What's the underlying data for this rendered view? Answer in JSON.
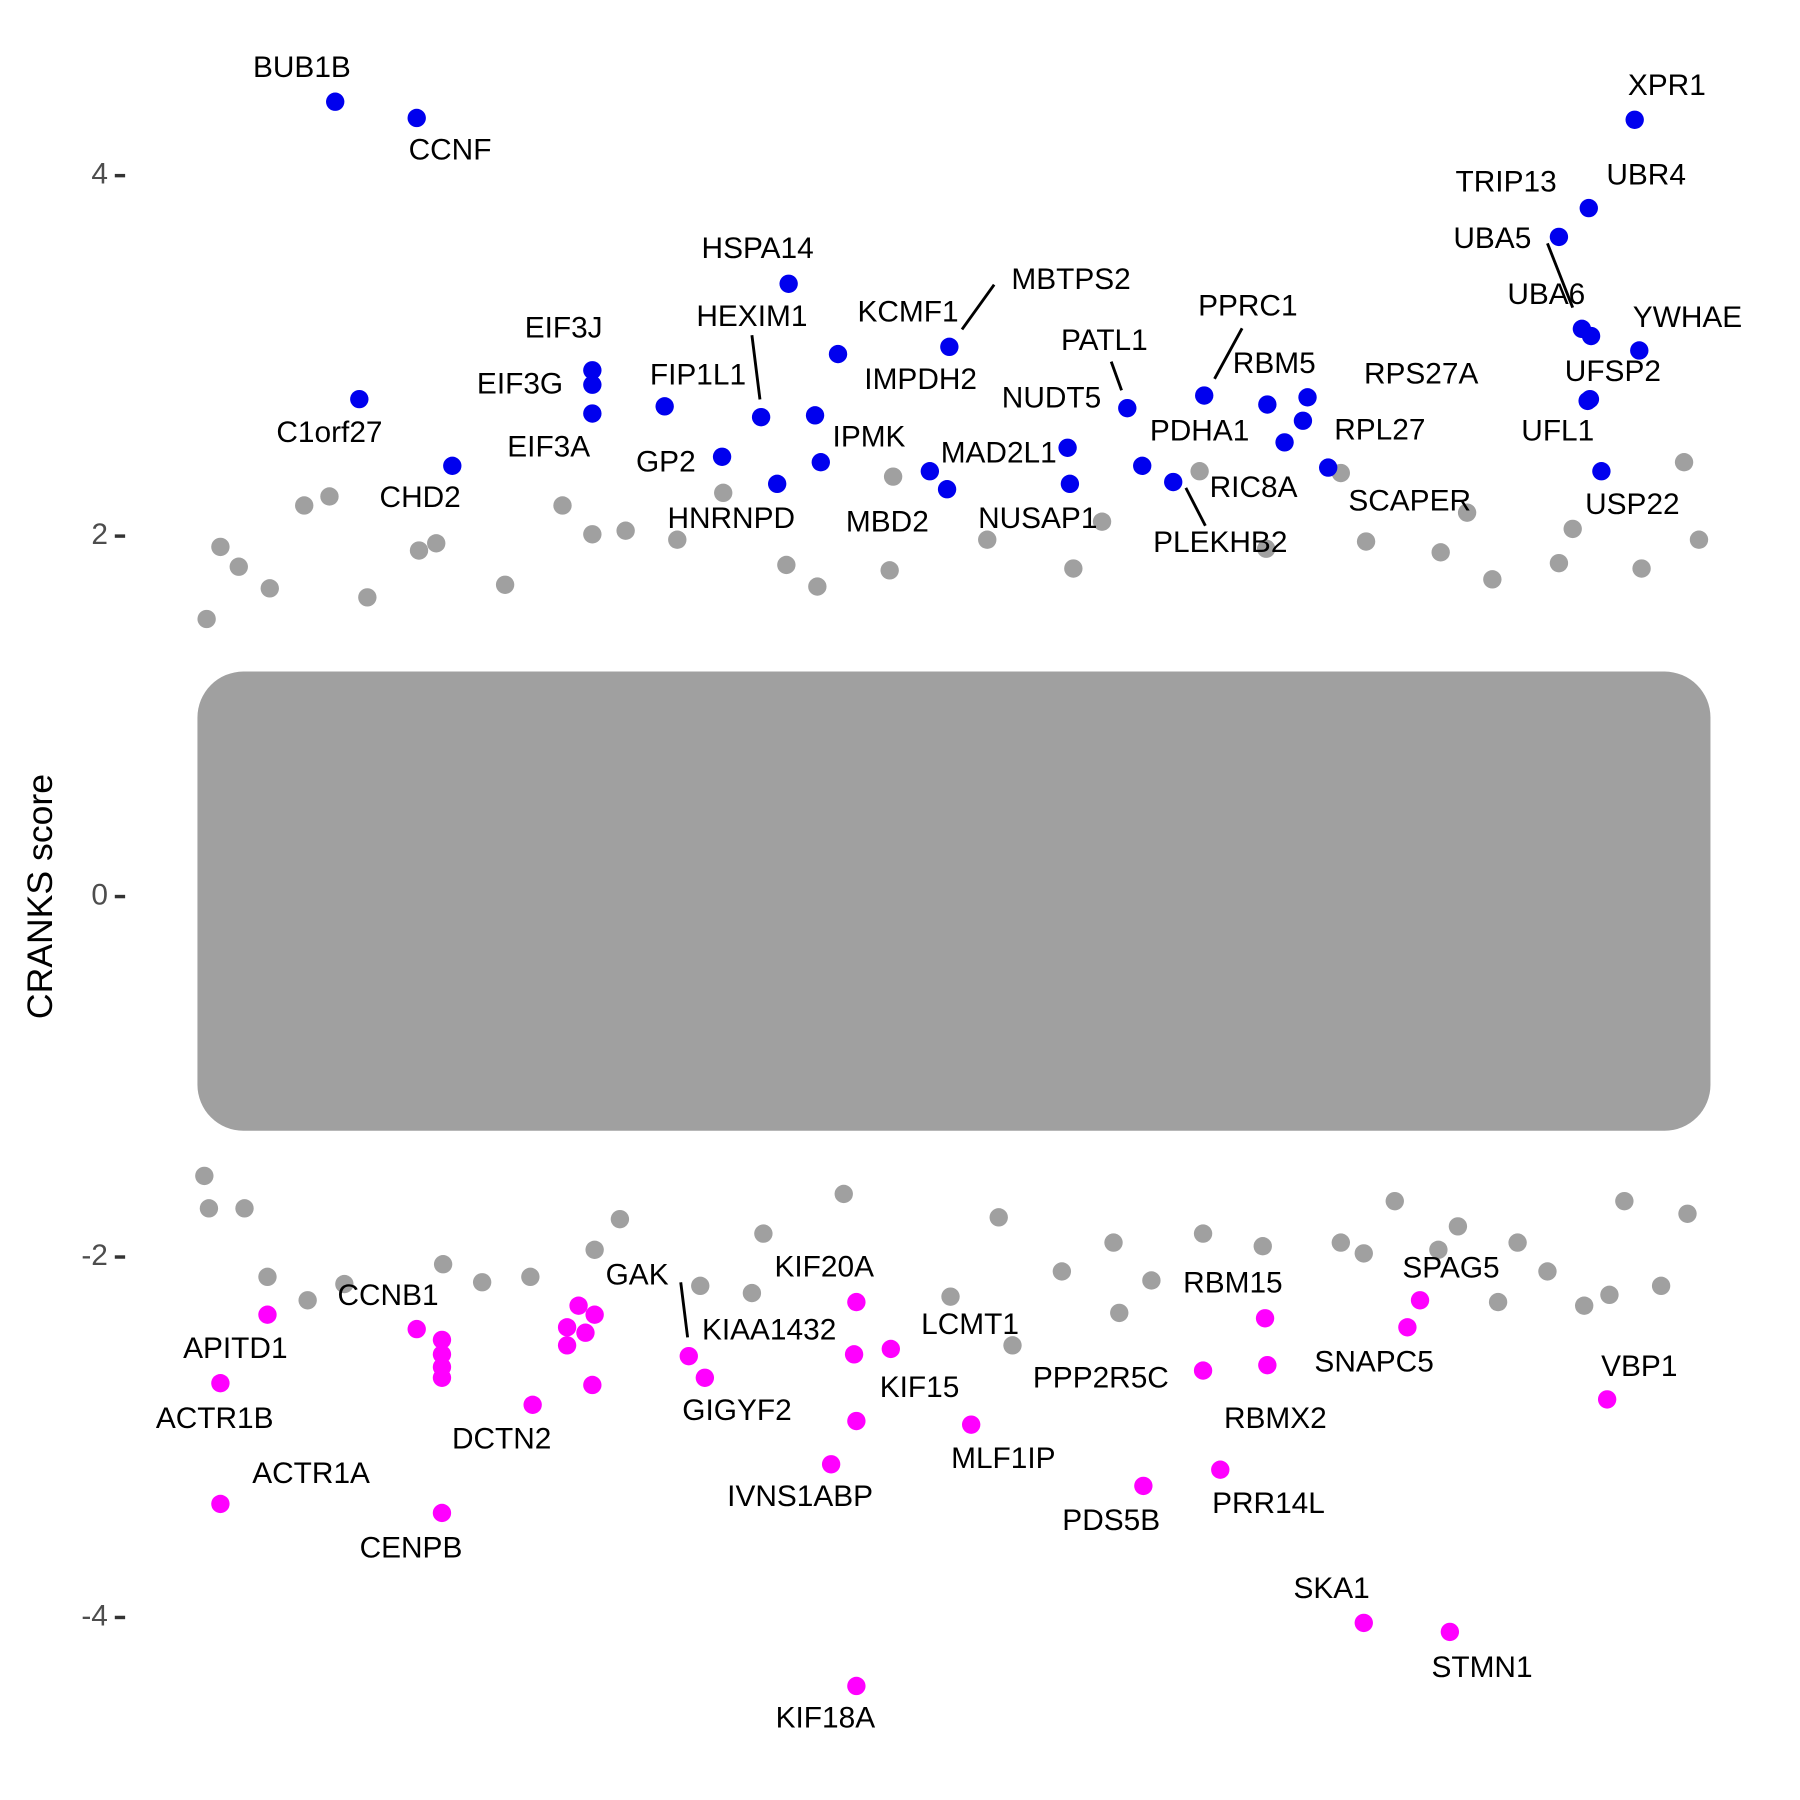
{
  "chart_data": {
    "type": "scatter",
    "y_label": "CRANKS score",
    "xlim": [
      0,
      1400
    ],
    "ylim": [
      -4.75,
      4.75
    ],
    "yticks": [
      4,
      2,
      0,
      -2,
      -4
    ],
    "series": [
      {
        "color": "#a0a0a0",
        "x": [
          187,
          165,
          92,
          108,
          135,
          280,
          265,
          390,
          445,
          416,
          530,
          585,
          612,
          678,
          675,
          760,
          860,
          945,
          1068,
          1090,
          1155,
          1178,
          1270,
          1367,
          1380,
          1258,
          1200,
          1330,
          1003,
          835,
          490,
          340,
          80,
          220,
          78,
          82,
          113,
          133,
          168,
          200,
          286,
          320,
          362,
          418,
          440,
          510,
          555,
          565,
          635,
          728,
          770,
          782,
          825,
          875,
          870,
          903,
          948,
          1000,
          1068,
          1088,
          1115,
          1170,
          1205,
          1222,
          1248,
          1280,
          1302,
          1347,
          1370,
          1315,
          1153
        ],
        "y": [
          2.22,
          2.17,
          1.94,
          1.83,
          1.71,
          1.96,
          1.92,
          2.17,
          2.03,
          2.01,
          2.24,
          1.84,
          1.72,
          2.33,
          1.81,
          1.98,
          2.08,
          2.36,
          2.35,
          1.97,
          1.91,
          2.13,
          2.04,
          2.41,
          1.98,
          1.85,
          1.76,
          1.82,
          1.93,
          1.82,
          1.98,
          1.73,
          1.54,
          1.66,
          -1.55,
          -1.73,
          -1.73,
          -2.11,
          -2.24,
          -2.15,
          -2.04,
          -2.14,
          -2.11,
          -1.96,
          -1.79,
          -2.16,
          -2.2,
          -1.87,
          -1.65,
          -2.22,
          -1.78,
          -2.49,
          -2.08,
          -2.31,
          -1.92,
          -2.13,
          -1.87,
          -1.94,
          -1.92,
          -1.98,
          -1.69,
          -1.83,
          -2.25,
          -1.92,
          -2.08,
          -2.27,
          -2.21,
          -2.16,
          -1.76,
          -1.69,
          -1.96
        ]
      },
      {
        "color": "#0000ee",
        "x": [
          192,
          263,
          1324,
          1284,
          1258,
          1278,
          1286,
          1328,
          1285,
          1283,
          1295,
          587,
          563,
          630,
          727,
          610,
          615,
          710,
          725,
          830,
          832,
          882,
          895,
          922,
          1019,
          949,
          1004,
          1039,
          1035,
          1057,
          416,
          416,
          416,
          213,
          294,
          479,
          529,
          577
        ],
        "y": [
          4.41,
          4.32,
          4.31,
          3.82,
          3.66,
          3.15,
          3.11,
          3.03,
          2.76,
          2.75,
          2.36,
          3.4,
          2.66,
          3.01,
          3.05,
          2.67,
          2.41,
          2.36,
          2.26,
          2.49,
          2.29,
          2.71,
          2.39,
          2.3,
          2.52,
          2.78,
          2.73,
          2.77,
          2.64,
          2.38,
          2.92,
          2.84,
          2.68,
          2.76,
          2.39,
          2.72,
          2.44,
          2.29
        ],
        "labels": [
          "BUB1B",
          "CCNF",
          "XPR1",
          "UBR4",
          "TRIP13",
          "UBA5",
          "UBA6",
          "YWHAE",
          "UFSP2",
          "UFL1",
          "USP22",
          "HSPA14",
          "HEXIM1",
          "KCMF1",
          "MBTPS2",
          "IMPDH2",
          "IPMK",
          "MBD2",
          "MAD2L1",
          "NUDT5",
          "NUSAP1",
          "PATL1",
          "PDHA1",
          "PLEKHB2",
          "RIC8A",
          "PPRC1",
          "RBM5",
          "RPS27A",
          "RPL27",
          "SCAPER",
          "EIF3J",
          "EIF3G",
          "EIF3A",
          "C1orf27",
          "CHD2",
          "FIP1L1",
          "GP2",
          "HNRNPD"
        ]
      },
      {
        "color": "#ff00ff",
        "x": [
          133,
          92,
          92,
          263,
          285,
          364,
          285,
          285,
          285,
          285,
          404,
          394,
          410,
          418,
          394,
          416,
          500,
          514,
          644,
          646,
          676,
          646,
          624,
          746,
          896,
          948,
          1002,
          1004,
          963,
          1137,
          1126,
          1300,
          1088,
          1163,
          646
        ],
        "y": [
          -2.32,
          -2.7,
          -3.37,
          -2.4,
          -3.42,
          -2.82,
          -2.46,
          -2.54,
          -2.61,
          -2.67,
          -2.27,
          -2.39,
          -2.42,
          -2.32,
          -2.49,
          -2.71,
          -2.55,
          -2.67,
          -2.54,
          -2.25,
          -2.51,
          -2.91,
          -3.15,
          -2.93,
          -3.27,
          -2.63,
          -2.34,
          -2.6,
          -3.18,
          -2.24,
          -2.39,
          -2.79,
          -4.03,
          -4.08,
          -4.38
        ],
        "labels": [
          "APITD1",
          "ACTR1B",
          "ACTR1A",
          "CCNB1",
          "CENPB",
          "DCTN2",
          null,
          null,
          null,
          null,
          null,
          null,
          null,
          null,
          null,
          null,
          "GAK",
          "GIGYF2",
          "KIAA1432",
          "KIF20A",
          "LCMT1",
          "KIF15",
          "IVNS1ABP",
          "MLF1IP",
          "PDS5B",
          "PPP2R5C",
          "RBM15",
          "RBMX2",
          "PRR14L",
          "SPAG5",
          "SNAPC5",
          "VBP1",
          "SKA1",
          "STMN1",
          "KIF18A"
        ]
      }
    ]
  }
}
